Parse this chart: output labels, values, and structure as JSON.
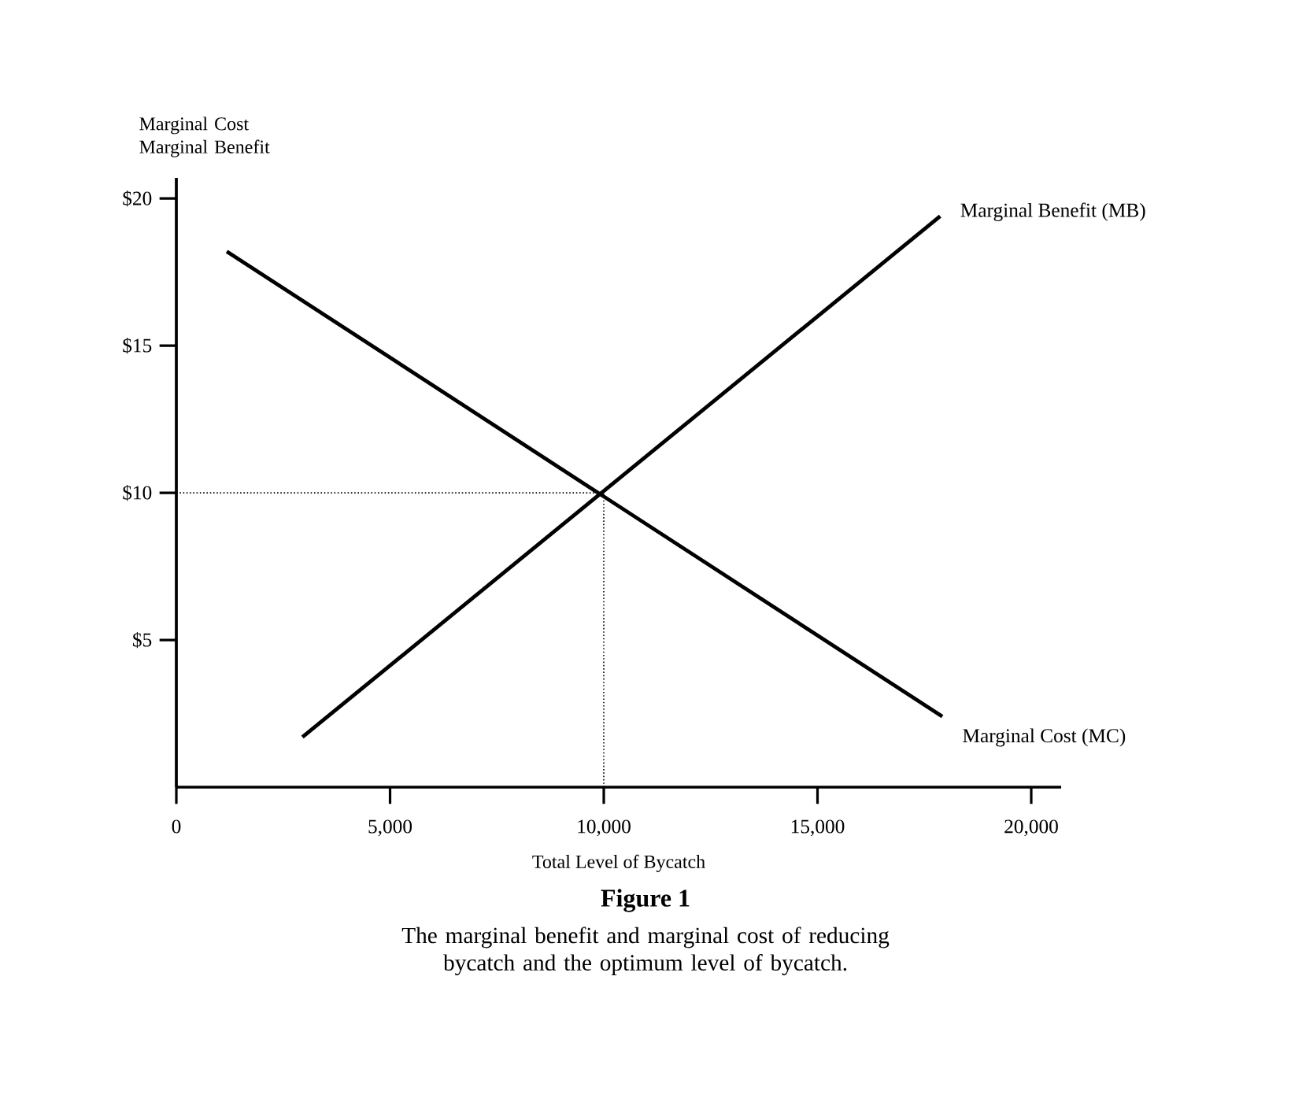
{
  "chart_data": {
    "type": "line",
    "title": "Figure 1",
    "subtitle": "The marginal benefit and marginal cost of reducing bycatch and the optimum level of bycatch.",
    "xlabel": "Total Level of Bycatch",
    "ylabel": "Marginal Cost Marginal Benefit",
    "xlim": [
      0,
      20700
    ],
    "ylim": [
      0,
      20.7
    ],
    "xticks": [
      0,
      {
        "value": 5000,
        "label": "5,000"
      },
      {
        "value": 10000,
        "label": "10,000"
      },
      {
        "value": 15000,
        "label": "15,000"
      },
      {
        "value": 20000,
        "label": "20,000"
      }
    ],
    "yticks": [
      {
        "value": 5,
        "label": "$5"
      },
      {
        "value": 10,
        "label": "$10"
      },
      {
        "value": 15,
        "label": "$15"
      },
      {
        "value": 20,
        "label": "$20"
      }
    ],
    "series": [
      {
        "name": "Marginal Benefit (MB)",
        "color": "#000000",
        "x": [
          2950,
          17870
        ],
        "values": [
          1.7,
          19.4
        ]
      },
      {
        "name": "Marginal Cost (MC)",
        "color": "#000000",
        "x": [
          1180,
          17920
        ],
        "values": [
          18.2,
          2.4
        ]
      }
    ],
    "ref_lines": [
      {
        "axis": "y",
        "value": 10,
        "line_style": "dotted"
      },
      {
        "axis": "x",
        "value": 10000,
        "line_style": "dotted"
      }
    ],
    "grid": false,
    "line_style": "solid"
  }
}
